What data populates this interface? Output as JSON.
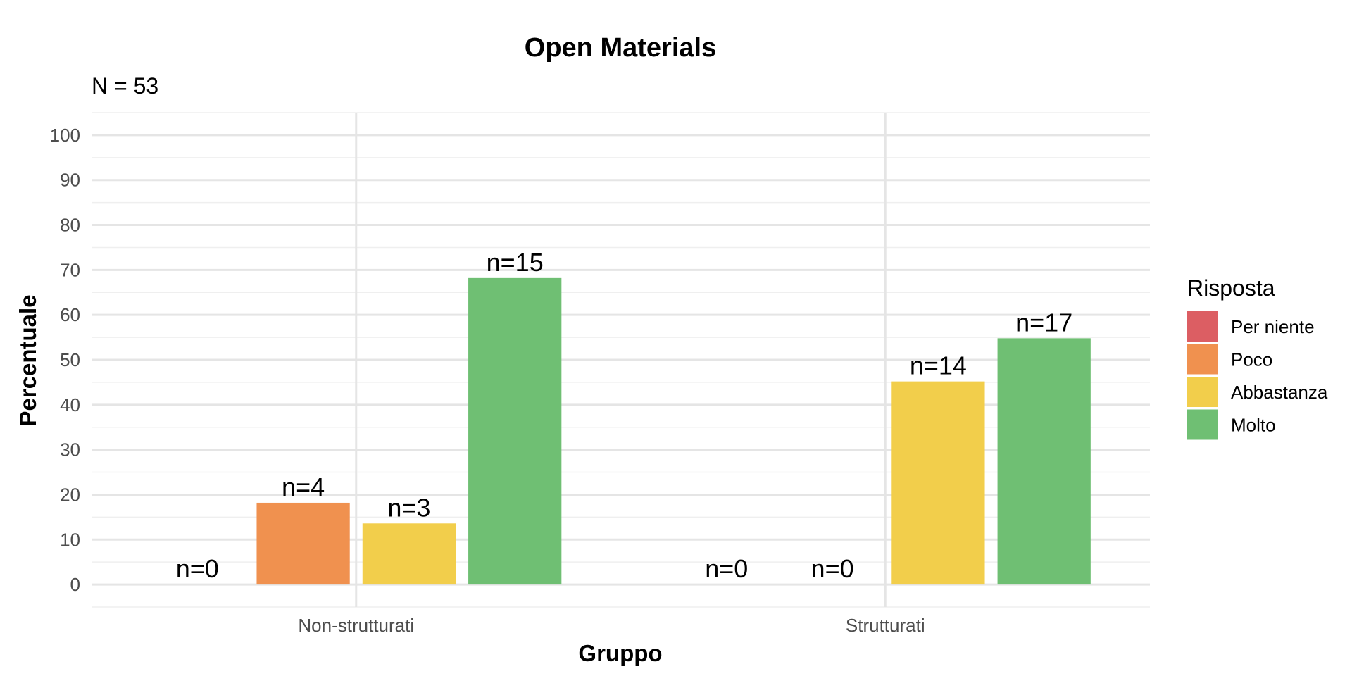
{
  "chart_data": {
    "type": "bar",
    "title": "Open Materials",
    "subtitle": "N = 53",
    "xlabel": "Gruppo",
    "ylabel": "Percentuale",
    "categories": [
      "Non-strutturati",
      "Strutturati"
    ],
    "ylim": [
      -5,
      105
    ],
    "yticks": [
      0,
      10,
      20,
      30,
      40,
      50,
      60,
      70,
      80,
      90,
      100
    ],
    "grid": true,
    "legend": {
      "title": "Risposta",
      "position": "right"
    },
    "series": [
      {
        "name": "Per niente",
        "color": "#DC5E63",
        "values": [
          0,
          0
        ],
        "labels": [
          "n=0",
          "n=0"
        ]
      },
      {
        "name": "Poco",
        "color": "#F0914F",
        "values": [
          18.2,
          0
        ],
        "labels": [
          "n=4",
          "n=0"
        ]
      },
      {
        "name": "Abbastanza",
        "color": "#F2CE4B",
        "values": [
          13.6,
          45.2
        ],
        "labels": [
          "n=3",
          "n=14"
        ]
      },
      {
        "name": "Molto",
        "color": "#6FBF73",
        "values": [
          68.2,
          54.8
        ],
        "labels": [
          "n=15",
          "n=17"
        ]
      }
    ]
  }
}
